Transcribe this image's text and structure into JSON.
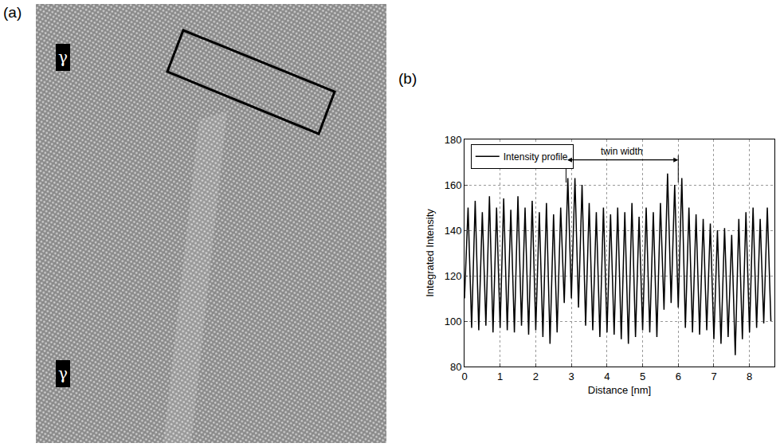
{
  "figure": {
    "panel_labels": [
      "(a)",
      "(b)"
    ],
    "micrograph_labels": [
      "γ",
      "γ"
    ]
  },
  "chart_data": {
    "type": "line",
    "x_label": "Distance [nm]",
    "y_label": "Integrated Intensity",
    "xlim": [
      0,
      8.7
    ],
    "xticks": [
      0,
      1,
      2,
      3,
      4,
      5,
      6,
      7,
      8
    ],
    "ylim": [
      80,
      180
    ],
    "yticks": [
      80,
      100,
      120,
      140,
      160,
      180
    ],
    "grid": true,
    "legend": "upper left",
    "series": [
      {
        "name": "Intensity profile",
        "color": "#000000",
        "line_style": "solid",
        "x": [
          0,
          0.1,
          0.2,
          0.3,
          0.4,
          0.5,
          0.6,
          0.7,
          0.8,
          0.9,
          1.0,
          1.1,
          1.2,
          1.3,
          1.4,
          1.5,
          1.6,
          1.7,
          1.8,
          1.9,
          2.0,
          2.1,
          2.2,
          2.3,
          2.4,
          2.5,
          2.6,
          2.7,
          2.8,
          2.9,
          3.0,
          3.1,
          3.2,
          3.3,
          3.4,
          3.5,
          3.6,
          3.7,
          3.8,
          3.9,
          4.0,
          4.1,
          4.2,
          4.3,
          4.4,
          4.5,
          4.6,
          4.7,
          4.8,
          4.9,
          5.0,
          5.1,
          5.2,
          5.3,
          5.4,
          5.5,
          5.6,
          5.7,
          5.8,
          5.9,
          6.0,
          6.1,
          6.2,
          6.3,
          6.4,
          6.5,
          6.6,
          6.7,
          6.8,
          6.9,
          7.0,
          7.1,
          7.2,
          7.3,
          7.4,
          7.5,
          7.6,
          7.7,
          7.8,
          7.9,
          8.0,
          8.1,
          8.2,
          8.3,
          8.4,
          8.5,
          8.6
        ],
        "values": [
          110,
          150,
          97,
          153,
          96,
          148,
          98,
          155,
          95,
          150,
          97,
          154,
          96,
          149,
          95,
          155,
          98,
          150,
          94,
          153,
          96,
          148,
          93,
          152,
          90,
          147,
          95,
          150,
          108,
          163,
          110,
          163,
          106,
          160,
          98,
          152,
          96,
          148,
          93,
          150,
          95,
          147,
          94,
          150,
          92,
          148,
          90,
          152,
          93,
          146,
          96,
          150,
          95,
          148,
          93,
          152,
          105,
          165,
          108,
          160,
          106,
          163,
          97,
          150,
          95,
          147,
          94,
          145,
          96,
          143,
          92,
          140,
          90,
          141,
          93,
          138,
          85,
          145,
          92,
          148,
          95,
          150,
          97,
          145,
          99,
          150,
          100
        ]
      }
    ],
    "annotations": [
      {
        "text": "twin width",
        "x0": 2.85,
        "x1": 6.0,
        "y": 171
      }
    ]
  }
}
